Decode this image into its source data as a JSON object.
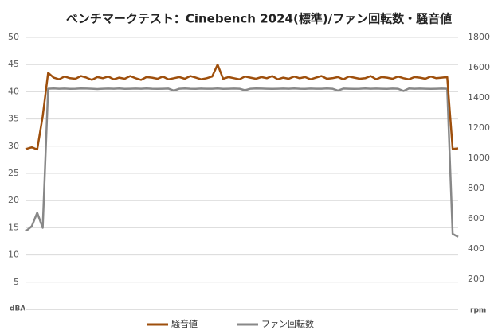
{
  "chart_data": {
    "type": "line",
    "title": "ベンチマークテスト：Cinebench 2024(標準)/ファン回転数・騒音値",
    "ylabel": "dBA",
    "y2label": "rpm",
    "ylim": [
      0,
      50
    ],
    "yticks": [
      5,
      10,
      15,
      20,
      25,
      30,
      35,
      40,
      45,
      50
    ],
    "y2lim": [
      0,
      1800
    ],
    "y2ticks": [
      200,
      400,
      600,
      800,
      1000,
      1200,
      1400,
      1600,
      1800
    ],
    "grid": true,
    "legend": "bottom",
    "series": [
      {
        "name": "騒音値",
        "color": "#9e4f0c",
        "values": [
          29.5,
          29.8,
          29.4,
          35.5,
          43.5,
          42.6,
          42.3,
          42.8,
          42.5,
          42.4,
          42.9,
          42.6,
          42.2,
          42.7,
          42.5,
          42.8,
          42.3,
          42.6,
          42.4,
          42.9,
          42.5,
          42.2,
          42.7,
          42.6,
          42.4,
          42.8,
          42.3,
          42.5,
          42.7,
          42.4,
          42.9,
          42.6,
          42.3,
          42.5,
          42.8,
          45,
          42.4,
          42.7,
          42.5,
          42.3,
          42.8,
          42.6,
          42.4,
          42.7,
          42.5,
          42.9,
          42.3,
          42.6,
          42.4,
          42.8,
          42.5,
          42.7,
          42.3,
          42.6,
          42.9,
          42.4,
          42.5,
          42.7,
          42.3,
          42.8,
          42.6,
          42.4,
          42.5,
          42.9,
          42.3,
          42.7,
          42.6,
          42.4,
          42.8,
          42.5,
          42.3,
          42.7,
          42.6,
          42.4,
          42.8,
          42.5,
          42.6,
          42.7,
          29.5,
          29.6
        ]
      },
      {
        "name": "ファン回転数",
        "color": "#888888",
        "axis": "y2",
        "values": [
          520,
          550,
          640,
          540,
          1460,
          1462,
          1460,
          1461,
          1459,
          1460,
          1462,
          1461,
          1460,
          1458,
          1460,
          1461,
          1460,
          1462,
          1459,
          1460,
          1461,
          1460,
          1462,
          1460,
          1459,
          1460,
          1461,
          1448,
          1460,
          1462,
          1460,
          1459,
          1461,
          1460,
          1460,
          1462,
          1459,
          1460,
          1461,
          1460,
          1450,
          1460,
          1462,
          1461,
          1460,
          1459,
          1460,
          1461,
          1460,
          1462,
          1460,
          1459,
          1461,
          1460,
          1460,
          1462,
          1460,
          1448,
          1461,
          1460,
          1459,
          1460,
          1462,
          1460,
          1461,
          1460,
          1459,
          1461,
          1460,
          1445,
          1462,
          1460,
          1461,
          1460,
          1459,
          1460,
          1461,
          1460,
          500,
          480
        ]
      }
    ]
  }
}
